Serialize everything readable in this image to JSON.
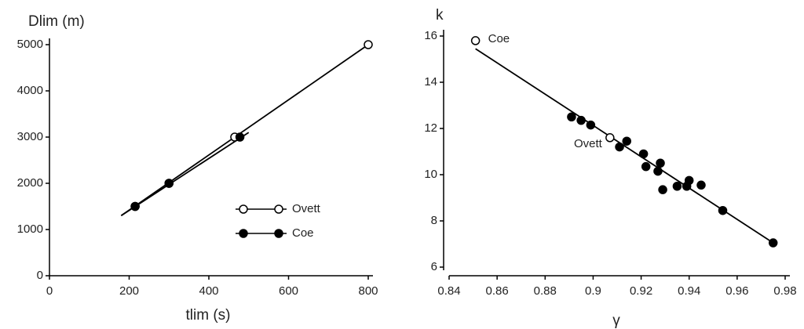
{
  "chart_data": [
    {
      "type": "line",
      "y_label": "Dlim (m)",
      "x_label": "tlim (s)",
      "xlim": [
        0,
        800
      ],
      "xticks": [
        0,
        200,
        400,
        600,
        800
      ],
      "ylim": [
        0,
        5000
      ],
      "yticks": [
        0,
        1000,
        2000,
        3000,
        4000,
        5000
      ],
      "legend": "lower right",
      "series": [
        {
          "name": "Ovett",
          "marker": "open",
          "color": "#000000",
          "x": [
            215,
            300,
            465,
            800
          ],
          "values": [
            1500,
            2000,
            3000,
            5000
          ],
          "fit": {
            "x": [
              180,
              800
            ],
            "values": [
              1300,
              5000
            ]
          }
        },
        {
          "name": "Coe",
          "marker": "filled",
          "color": "#000000",
          "x": [
            215,
            300,
            478
          ],
          "values": [
            1500,
            2000,
            3000
          ],
          "fit": {
            "x": [
              180,
              500
            ],
            "values": [
              1300,
              3100
            ]
          }
        }
      ]
    },
    {
      "type": "scatter",
      "y_label": "k",
      "x_label": "γ",
      "xlim": [
        0.84,
        0.98
      ],
      "xticks": [
        0.84,
        0.86,
        0.88,
        0.9,
        0.92,
        0.94,
        0.96,
        0.98
      ],
      "ylim": [
        6,
        16
      ],
      "yticks": [
        6,
        8,
        10,
        12,
        14,
        16
      ],
      "series": [
        {
          "name": "Coe",
          "marker": "open",
          "color": "#000000",
          "x": [
            0.851
          ],
          "values": [
            15.8
          ]
        },
        {
          "name": "Ovett",
          "marker": "open",
          "color": "#000000",
          "x": [
            0.907
          ],
          "values": [
            11.6
          ]
        },
        {
          "marker": "filled",
          "color": "#000000",
          "x": [
            0.891,
            0.895,
            0.899,
            0.911,
            0.914,
            0.921,
            0.922,
            0.927,
            0.928,
            0.929,
            0.935,
            0.939,
            0.94,
            0.945,
            0.954,
            0.975
          ],
          "values": [
            12.5,
            12.35,
            12.15,
            11.2,
            11.45,
            10.9,
            10.35,
            10.15,
            10.5,
            9.35,
            9.5,
            9.5,
            9.75,
            9.55,
            8.45,
            7.05
          ]
        }
      ],
      "fit": {
        "x": [
          0.851,
          0.975
        ],
        "values": [
          15.45,
          7.05
        ]
      }
    }
  ]
}
